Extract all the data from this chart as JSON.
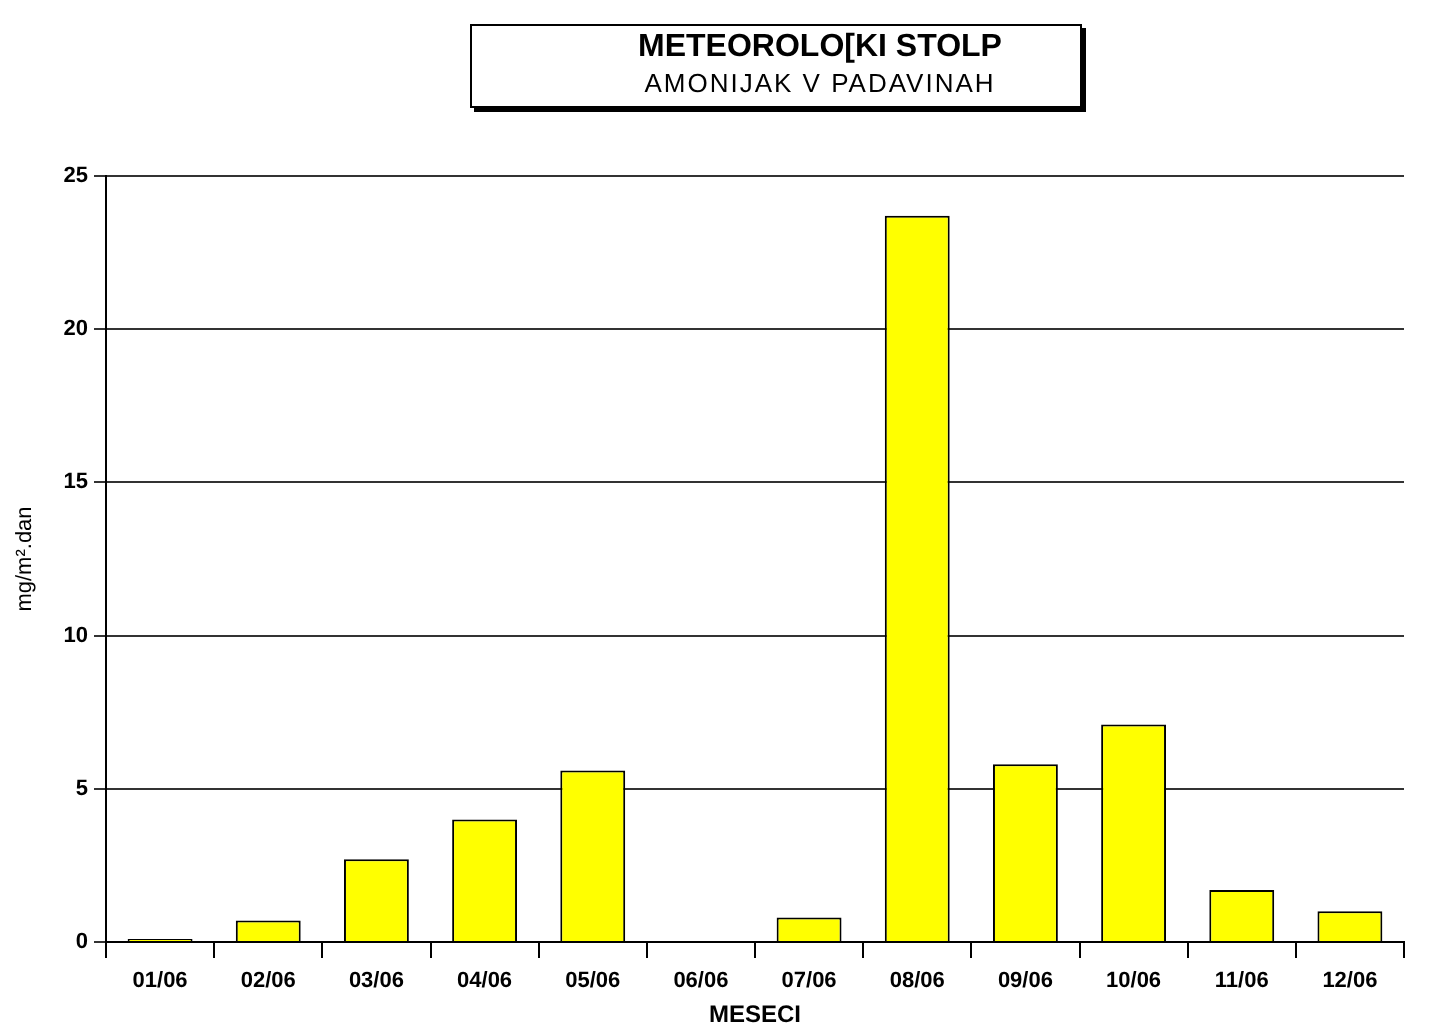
{
  "chart_data": {
    "type": "bar",
    "title": "METEOROLO[KI STOLP",
    "subtitle": "AMONIJAK V PADAVINAH",
    "xlabel": "MESECI",
    "ylabel": "mg/m².dan",
    "categories": [
      "01/06",
      "02/06",
      "03/06",
      "04/06",
      "05/06",
      "06/06",
      "07/06",
      "08/06",
      "09/06",
      "10/06",
      "11/06",
      "12/06"
    ],
    "values": [
      0.1,
      0.7,
      2.7,
      4.0,
      5.6,
      0.0,
      0.8,
      23.7,
      5.8,
      7.1,
      1.7,
      1.0
    ],
    "color": "#ffff00",
    "ylim": [
      0,
      25
    ],
    "yticks": [
      0,
      5,
      10,
      15,
      20,
      25
    ],
    "grid": "y"
  }
}
